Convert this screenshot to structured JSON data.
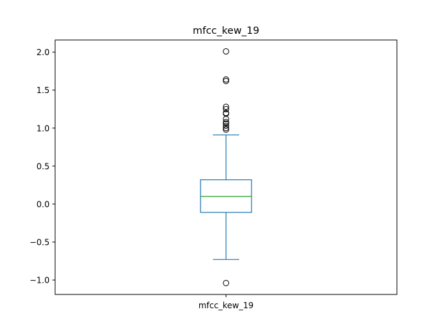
{
  "chart_data": {
    "type": "box",
    "title": "mfcc_kew_19",
    "categories": [
      "mfcc_kew_19"
    ],
    "ylim": [
      -1.19,
      2.16
    ],
    "yticks": [
      -1.0,
      -0.5,
      0.0,
      0.5,
      1.0,
      1.5,
      2.0
    ],
    "ytick_labels": [
      "−1.0",
      "−0.5",
      "0.0",
      "0.5",
      "1.0",
      "1.5",
      "2.0"
    ],
    "grid": false,
    "box": {
      "whisker_low": -0.73,
      "q1": -0.11,
      "median": 0.1,
      "q3": 0.32,
      "whisker_high": 0.91
    },
    "outliers": [
      2.01,
      1.64,
      1.62,
      1.28,
      1.25,
      1.2,
      1.19,
      1.12,
      1.08,
      1.06,
      1.03,
      1.0,
      0.98,
      -1.04
    ],
    "colors": {
      "box": "#1f77b4",
      "median": "#2ca02c",
      "outlier": "#000000"
    }
  }
}
